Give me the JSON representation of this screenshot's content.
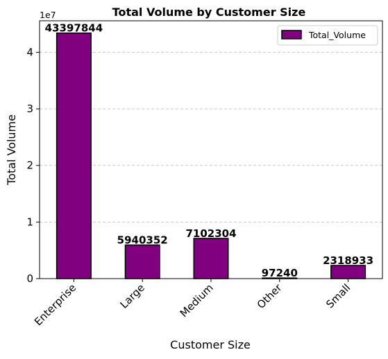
{
  "chart_data": {
    "type": "bar",
    "title": "Total Volume by Customer Size",
    "xlabel": "Customer Size",
    "ylabel": "Total Volume",
    "y_scale_label": "1e7",
    "categories": [
      "Enterprise",
      "Large",
      "Medium",
      "Other",
      "Small"
    ],
    "series": [
      {
        "name": "Total_Volume",
        "values": [
          43397844,
          5940352,
          7102304,
          97240,
          2318933
        ]
      }
    ],
    "data_labels": [
      "43397844",
      "5940352",
      "7102304",
      "97240",
      "2318933"
    ],
    "y_ticks": [
      0,
      10000000,
      20000000,
      30000000,
      40000000
    ],
    "y_tick_labels": [
      "0",
      "1",
      "2",
      "3",
      "4"
    ],
    "ylim": [
      0,
      45567736
    ],
    "grid": {
      "y": true,
      "style": "dashed"
    },
    "legend": "top-right",
    "colors": {
      "bar": "#800080",
      "edge": "#000000",
      "grid": "#c8c8c8"
    }
  }
}
